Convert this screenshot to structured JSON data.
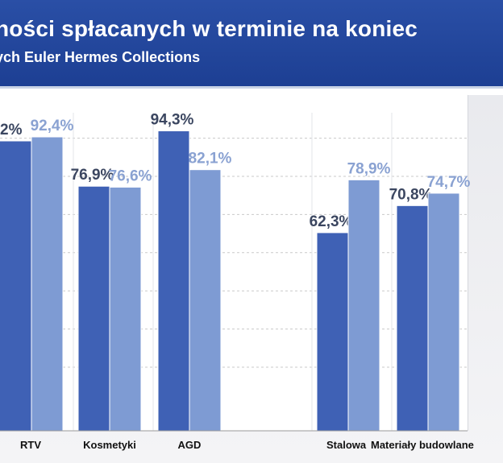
{
  "header": {
    "title": "ności spłacanych w terminie na koniec",
    "subtitle": "ych Euler Hermes Collections"
  },
  "colors": {
    "header_bg": "#2346a0",
    "series_dark": "#3f61b5",
    "series_light": "#7e9bd3",
    "label_dark": "#3b4660",
    "label_light": "#8aa2d2"
  },
  "chart_data": {
    "type": "bar",
    "categories": [
      "RTV",
      "Kosmetyki",
      "AGD",
      "",
      "Stalowa",
      "Materiały budowlane"
    ],
    "series": [
      {
        "values": [
          null,
          76.9,
          94.3,
          null,
          62.3,
          70.8
        ],
        "labels": [
          "",
          "76,9%",
          "94,3%",
          "",
          "62,3%",
          "70,8%"
        ]
      },
      {
        "values": [
          92.4,
          76.6,
          82.1,
          null,
          78.9,
          74.7
        ],
        "labels": [
          "92,4%",
          "76,6%",
          "82,1%",
          "",
          "78,9%",
          "74,7%"
        ]
      }
    ],
    "partial_visible_labels": [
      "2%"
    ],
    "ylim": [
      0,
      100
    ],
    "grid": true,
    "legend": "none"
  }
}
